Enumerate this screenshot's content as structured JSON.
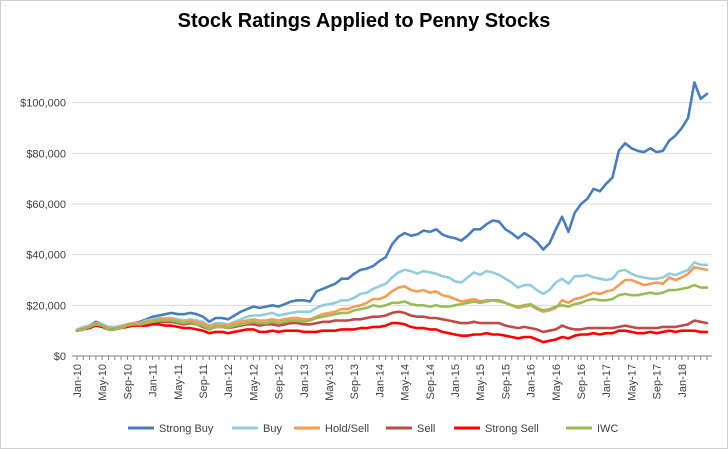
{
  "chart_data": {
    "type": "line",
    "title": "Stock Ratings Applied to Penny Stocks",
    "xlabel": "",
    "ylabel": "",
    "ylim": [
      0,
      120000
    ],
    "y_ticks": [
      0,
      20000,
      40000,
      60000,
      80000,
      100000
    ],
    "y_tick_labels": [
      "$0",
      "$20,000",
      "$40,000",
      "$60,000",
      "$80,000",
      "$100,000"
    ],
    "x_tick_labels": [
      "Jan-10",
      "May-10",
      "Sep-10",
      "Jan-11",
      "May-11",
      "Sep-11",
      "Jan-12",
      "May-12",
      "Sep-12",
      "Jan-13",
      "May-13",
      "Sep-13",
      "Jan-14",
      "May-14",
      "Sep-14",
      "Jan-15",
      "May-15",
      "Sep-15",
      "Jan-16",
      "May-16",
      "Sep-16",
      "Jan-17",
      "May-17",
      "Sep-17",
      "Jan-18"
    ],
    "x_period": "monthly, Jan-10 to Mar-18",
    "grid": "horizontal",
    "legend_position": "bottom",
    "series": [
      {
        "name": "Strong Buy",
        "color": "#4a7ebb",
        "values": [
          10000,
          11000,
          12000,
          13500,
          12500,
          11000,
          11000,
          11500,
          12500,
          13000,
          13500,
          14500,
          15500,
          16000,
          16500,
          17000,
          16500,
          16500,
          17000,
          16500,
          15500,
          13500,
          15000,
          15000,
          14500,
          16000,
          17500,
          18500,
          19500,
          19000,
          19500,
          20000,
          19500,
          20500,
          21500,
          22000,
          22000,
          21500,
          25500,
          26500,
          27500,
          28500,
          30500,
          30500,
          32500,
          34000,
          34500,
          35500,
          37500,
          39000,
          44000,
          47000,
          48500,
          47500,
          48000,
          49500,
          49000,
          50000,
          48000,
          47000,
          46500,
          45500,
          47500,
          50000,
          50000,
          52000,
          53500,
          53000,
          50000,
          48500,
          46500,
          48500,
          47000,
          45000,
          42000,
          44500,
          50000,
          55000,
          49000,
          56500,
          60000,
          62000,
          66000,
          65000,
          68000,
          70500,
          81000,
          84000,
          82000,
          81000,
          80500,
          82000,
          80500,
          81000,
          85000,
          87000,
          90000,
          94000,
          108000,
          101500,
          103500
        ]
      },
      {
        "name": "Buy",
        "color": "#93cddd",
        "values": [
          10500,
          11500,
          12000,
          13000,
          12500,
          11500,
          11500,
          12000,
          12500,
          13000,
          13000,
          14000,
          14500,
          15000,
          15000,
          15000,
          14500,
          14000,
          14500,
          14000,
          13500,
          12000,
          13000,
          13000,
          12500,
          13500,
          14500,
          15500,
          16000,
          16000,
          16500,
          17000,
          16000,
          16500,
          17000,
          17500,
          17500,
          17500,
          19000,
          20000,
          20500,
          21000,
          22000,
          22000,
          23000,
          24500,
          25000,
          26500,
          27500,
          28500,
          31000,
          33000,
          34000,
          33500,
          32500,
          33500,
          33000,
          32500,
          31500,
          31000,
          29500,
          29000,
          31000,
          33000,
          32000,
          33500,
          33000,
          32000,
          30500,
          29000,
          27000,
          28000,
          28000,
          26000,
          24500,
          26000,
          29000,
          30500,
          28500,
          31500,
          31500,
          32000,
          31000,
          30500,
          30000,
          30500,
          33500,
          34000,
          32500,
          31500,
          31000,
          30500,
          30500,
          31000,
          32500,
          32000,
          33000,
          34000,
          37000,
          36000,
          36000
        ]
      },
      {
        "name": "Hold/Sell",
        "color": "#f59d56",
        "values": [
          10000,
          11000,
          11500,
          13000,
          12000,
          11000,
          11000,
          11500,
          12500,
          13000,
          13000,
          13500,
          14000,
          14500,
          14500,
          14500,
          14000,
          13500,
          14000,
          13500,
          13000,
          11500,
          12500,
          12500,
          12000,
          13000,
          13500,
          14000,
          14500,
          14000,
          14000,
          14500,
          14000,
          14500,
          15000,
          15000,
          14500,
          14500,
          15500,
          16500,
          17000,
          17500,
          18500,
          18500,
          19500,
          20000,
          21000,
          22500,
          22500,
          23500,
          25500,
          27000,
          27500,
          26000,
          25500,
          26000,
          25000,
          25500,
          24000,
          23500,
          22500,
          21500,
          22000,
          22500,
          21500,
          22000,
          22000,
          21500,
          21000,
          20000,
          19000,
          19500,
          20000,
          18500,
          17500,
          18000,
          19000,
          22000,
          21000,
          22500,
          23000,
          24000,
          25000,
          24500,
          25500,
          26000,
          28000,
          30000,
          30000,
          29000,
          28000,
          28500,
          29000,
          28500,
          31000,
          30000,
          31000,
          32500,
          35000,
          34500,
          34000
        ]
      },
      {
        "name": "Sell",
        "color": "#be4b48",
        "values": [
          10000,
          10500,
          11500,
          12500,
          12000,
          10500,
          10500,
          11000,
          12000,
          12500,
          12500,
          13000,
          13000,
          13500,
          13500,
          13500,
          13000,
          12500,
          13000,
          12500,
          11500,
          10500,
          11500,
          11500,
          11000,
          11500,
          12000,
          12500,
          12500,
          12000,
          12500,
          12500,
          12000,
          12500,
          13000,
          13000,
          12500,
          12500,
          13000,
          13500,
          13500,
          14000,
          14000,
          14000,
          14500,
          14500,
          15000,
          15500,
          15500,
          16000,
          17000,
          17500,
          17000,
          16000,
          15500,
          15500,
          15000,
          15000,
          14500,
          14000,
          13500,
          13000,
          13000,
          13500,
          13000,
          13000,
          13000,
          13000,
          12000,
          11500,
          11000,
          11500,
          11000,
          10500,
          9500,
          10000,
          10500,
          12000,
          11000,
          10500,
          10500,
          11000,
          11000,
          11000,
          11000,
          11000,
          11500,
          12000,
          11500,
          11000,
          11000,
          11000,
          11000,
          11500,
          11500,
          11500,
          12000,
          12500,
          14000,
          13500,
          13000
        ]
      },
      {
        "name": "Strong Sell",
        "color": "#ff0000",
        "values": [
          10000,
          10500,
          11000,
          12000,
          11500,
          10500,
          10500,
          11000,
          11500,
          12000,
          12000,
          12000,
          12500,
          12500,
          12000,
          12000,
          11500,
          11000,
          11000,
          10500,
          10000,
          9000,
          9500,
          9500,
          9000,
          9500,
          10000,
          10500,
          10500,
          9500,
          9500,
          10000,
          9500,
          10000,
          10000,
          10000,
          9500,
          9500,
          9500,
          10000,
          10000,
          10000,
          10500,
          10500,
          10500,
          11000,
          11000,
          11500,
          11500,
          12000,
          13000,
          13000,
          12500,
          11500,
          11000,
          11000,
          10500,
          10500,
          9500,
          9000,
          8500,
          8000,
          8000,
          8500,
          8500,
          9000,
          8500,
          8500,
          8000,
          7500,
          7000,
          7500,
          7500,
          6500,
          5500,
          6000,
          6500,
          7500,
          7000,
          8000,
          8500,
          8500,
          9000,
          8500,
          9000,
          9000,
          10000,
          10000,
          9500,
          9000,
          9000,
          9500,
          9000,
          9500,
          10000,
          9500,
          10000,
          10000,
          10000,
          9500,
          9500
        ]
      },
      {
        "name": "IWC",
        "color": "#9bbb59",
        "values": [
          10000,
          10500,
          11500,
          12500,
          12000,
          10500,
          10500,
          11000,
          12000,
          12500,
          12500,
          13000,
          13500,
          14000,
          14000,
          14000,
          13500,
          13000,
          13500,
          12500,
          12000,
          10500,
          11500,
          11500,
          11000,
          12000,
          12500,
          13000,
          13500,
          13000,
          13000,
          13500,
          13000,
          13500,
          14000,
          14000,
          13500,
          14000,
          15000,
          15500,
          16000,
          16500,
          17000,
          17000,
          18000,
          18500,
          19000,
          20000,
          19500,
          20000,
          21000,
          21000,
          21500,
          20500,
          20000,
          20000,
          19500,
          20000,
          19500,
          19500,
          20000,
          20500,
          21000,
          21500,
          21000,
          21500,
          22000,
          22000,
          21000,
          20000,
          19500,
          20000,
          20500,
          19000,
          18000,
          18500,
          19500,
          20000,
          19500,
          20500,
          21000,
          22000,
          22500,
          22000,
          22000,
          22500,
          24000,
          24500,
          24000,
          24000,
          24500,
          25000,
          24500,
          25000,
          26000,
          26000,
          26500,
          27000,
          28000,
          27000,
          27000
        ]
      }
    ]
  }
}
